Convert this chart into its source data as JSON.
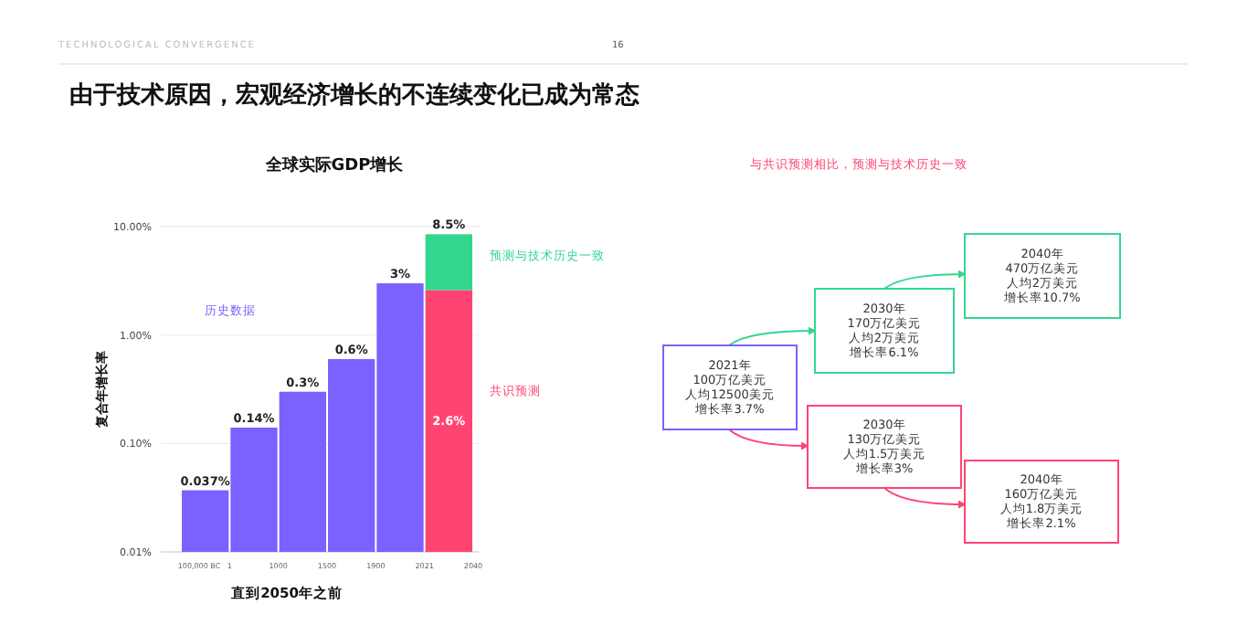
{
  "chart_data": {
    "type": "bar",
    "title": "全球实际GDP增长",
    "xlabel": "直到2050年之前",
    "ylabel": "复合年增长率",
    "categories": [
      null,
      null,
      null,
      null,
      null,
      null
    ],
    "series": [
      {
        "name": "历史数据",
        "color": "#7b61ff",
        "values": [
          0.037,
          0.14,
          0.3,
          0.6,
          3,
          null
        ],
        "value_labels": [
          "0.037%",
          "0.14%",
          "0.3%",
          "0.6%",
          "3%",
          null
        ]
      },
      {
        "name": "共识预测",
        "color": "#ff4473",
        "values": [
          null,
          null,
          null,
          null,
          null,
          2.6
        ],
        "value_labels": [
          null,
          null,
          null,
          null,
          null,
          "2.6%"
        ]
      },
      {
        "name": "预测与技术历史一致",
        "color": "#33d68f",
        "values": [
          null,
          null,
          null,
          null,
          null,
          5.9
        ]
      }
    ],
    "stacked": true,
    "totals": [
      null,
      null,
      null,
      null,
      null,
      "8.5%"
    ],
    "log": true,
    "ylim": [
      0.01,
      10
    ],
    "yticks": [
      {
        "value": 0.01,
        "label": "0.01%"
      },
      {
        "value": 0.1,
        "label": "0.10%"
      },
      {
        "value": 1,
        "label": "1.00%"
      },
      {
        "value": 10,
        "label": "10.00%"
      }
    ],
    "grid": "y",
    "annotations": [
      "TECHNOLOGICAL CONVERGENCE",
      "16",
      "由于技术原因，宏观经济增长的不连续变化已成为常态",
      "100,000 BC",
      "1",
      "1000",
      "1500",
      "1900",
      "2021",
      "2040",
      "与共识预测相比，预测与技术历史一致",
      "2021年",
      "100万亿美元",
      "人均12500美元",
      "增长率3.7%",
      "2030年",
      "170万亿美元",
      "人均2万美元",
      "增长率6.1%",
      "2040年",
      "470万亿美元",
      "人均2万美元",
      "增长率10.7%",
      "2030年",
      "130万亿美元",
      "人均1.5万美元",
      "增长率3%",
      "2040年",
      "160万亿美元",
      "人均1.8万美元",
      "增长率2.1%"
    ]
  }
}
